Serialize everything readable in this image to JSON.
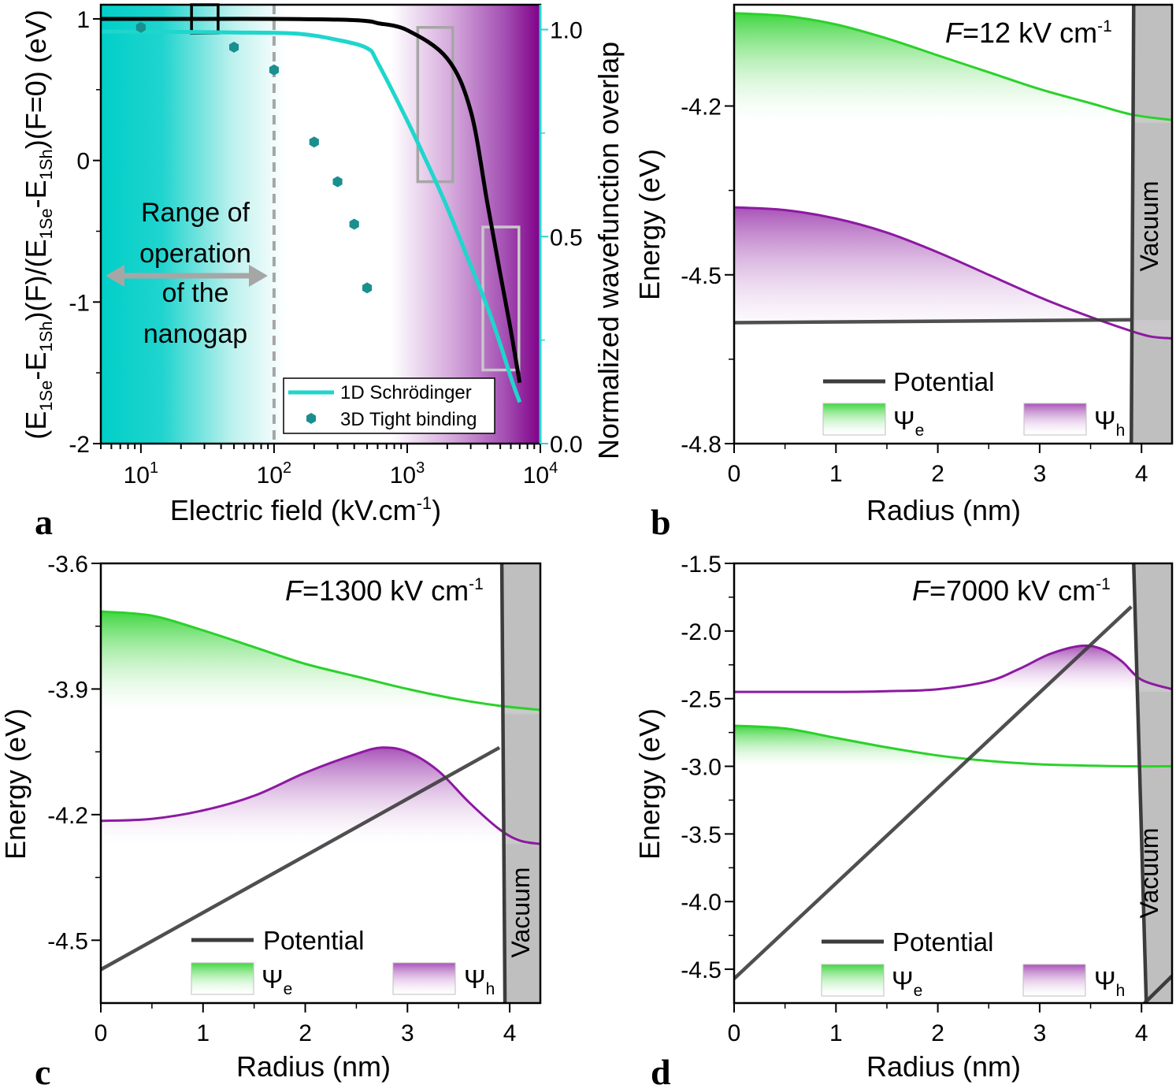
{
  "figure": {
    "panel_letters": [
      "a",
      "b",
      "c",
      "d"
    ]
  },
  "colors": {
    "schrodinger": "#1ED6CC",
    "tight_binding": "#1A8F8F",
    "electron": "#2BD12B",
    "hole": "#8C1AA0",
    "potential": "#3C3C3C",
    "vacuum": "#BFBFBF",
    "cyan_bg": "#00CFC8",
    "purple_bg": "#800088",
    "axis_cyan": "#26D7D0"
  },
  "chart_data": [
    {
      "id": "a",
      "type": "line",
      "xscale": "log",
      "xlim": [
        5,
        10000
      ],
      "ylim_left": [
        -2,
        1.1
      ],
      "ylim_right": [
        0,
        1.06
      ],
      "xlabel": "Electric field (kV.cm",
      "xlabel_sup": "-1",
      "xlabel_end": ")",
      "ylabel_left": "(E1Se-E1Sh)(F)/(E1Se-E1Sh)(F=0) (eV)",
      "ylabel_right": "Normalized wavefunction overlap",
      "xticks": [
        {
          "base": "10",
          "exp": "1",
          "value": 10
        },
        {
          "base": "10",
          "exp": "2",
          "value": 100
        },
        {
          "base": "10",
          "exp": "3",
          "value": 1000
        },
        {
          "base": "10",
          "exp": "4",
          "value": 10000
        }
      ],
      "yticks_left": [
        {
          "label": "1",
          "value": 1
        },
        {
          "label": "0",
          "value": 0
        },
        {
          "label": "-1",
          "value": -1
        },
        {
          "label": "-2",
          "value": -2
        }
      ],
      "yticks_right": [
        {
          "label": "1.0",
          "value": 1.0
        },
        {
          "label": "0.5",
          "value": 0.5
        },
        {
          "label": "0.0",
          "value": 0.0
        }
      ],
      "series": [
        {
          "name": "energy_ratio",
          "axis": "left",
          "x": [
            5,
            10,
            30,
            100,
            300,
            500,
            600,
            1000,
            2000,
            3000,
            4000,
            5000,
            6000,
            7000
          ],
          "y": [
            1.0,
            1.0,
            1.0,
            1.0,
            0.995,
            0.985,
            0.97,
            0.92,
            0.72,
            0.35,
            -0.3,
            -0.8,
            -1.2,
            -1.57
          ]
        },
        {
          "name": "1D Schrödinger",
          "axis": "right",
          "x": [
            5,
            10,
            50,
            150,
            300,
            500,
            600,
            1000,
            1500,
            2000,
            3000,
            4000,
            5000,
            6000,
            7000
          ],
          "y": [
            0.995,
            0.995,
            0.993,
            0.99,
            0.975,
            0.955,
            0.92,
            0.78,
            0.66,
            0.57,
            0.43,
            0.33,
            0.24,
            0.16,
            0.1
          ]
        },
        {
          "name": "3D Tight binding",
          "axis": "left",
          "marker": "hexagon",
          "x": [
            10,
            50,
            100,
            200,
            300,
            400,
            500
          ],
          "y": [
            0.94,
            0.8,
            0.64,
            0.13,
            -0.15,
            -0.45,
            -0.9
          ]
        }
      ],
      "legend": [
        "1D Schrödinger",
        "3D Tight binding"
      ],
      "annotation_lines": [
        "Range of",
        "operation",
        "of the",
        "nanogap"
      ],
      "dashed_line_x": 100,
      "boxes": [
        {
          "color": "#000000",
          "x0": 24,
          "x1": 38,
          "y0": 0.9,
          "y1": 1.1
        },
        {
          "color": "#A6A6A6",
          "x0": 1200,
          "x1": 2200,
          "y0": -0.15,
          "y1": 0.94
        },
        {
          "color": "#C8C8C8",
          "x0": 3700,
          "x1": 6900,
          "y0": -1.48,
          "y1": -0.47
        }
      ]
    },
    {
      "id": "b",
      "type": "line",
      "field_label_italic": "F",
      "field_label": "=12 kV cm",
      "field_sup": "-1",
      "xlim": [
        0,
        4.3
      ],
      "ylim": [
        -4.8,
        -4.02
      ],
      "xlabel": "Radius (nm)",
      "ylabel": "Energy (eV)",
      "xticks": [
        0,
        1,
        2,
        3,
        4
      ],
      "yticks": [
        {
          "label": "-4.2",
          "value": -4.2
        },
        {
          "label": "-4.5",
          "value": -4.5
        },
        {
          "label": "-4.8",
          "value": -4.8
        }
      ],
      "wall_x": 3.9,
      "vacuum_label": "Vacuum",
      "electron": {
        "baseline": -4.23,
        "x": [
          0,
          0.5,
          1,
          1.5,
          2,
          2.5,
          3,
          3.5,
          3.9,
          4.3
        ],
        "y": [
          -4.035,
          -4.04,
          -4.055,
          -4.08,
          -4.11,
          -4.14,
          -4.17,
          -4.195,
          -4.215,
          -4.225
        ]
      },
      "hole": {
        "baseline": -4.58,
        "x": [
          0,
          0.5,
          1,
          1.5,
          2,
          2.5,
          3,
          3.5,
          3.9,
          4.1,
          4.3
        ],
        "y": [
          -4.38,
          -4.385,
          -4.4,
          -4.425,
          -4.46,
          -4.5,
          -4.54,
          -4.575,
          -4.6,
          -4.61,
          -4.613
        ]
      },
      "potential": {
        "x": [
          0,
          3.9
        ],
        "y": [
          -4.585,
          -4.58
        ]
      },
      "legend": {
        "potential": "Potential",
        "psi_e": "Ψ",
        "psi_e_sub": "e",
        "psi_h": "Ψ",
        "psi_h_sub": "h"
      }
    },
    {
      "id": "c",
      "type": "line",
      "field_label_italic": "F",
      "field_label": "=1300 kV cm",
      "field_sup": "-1",
      "xlim": [
        0,
        4.3
      ],
      "ylim": [
        -4.65,
        -3.6
      ],
      "xlabel": "Radius (nm)",
      "ylabel": "Energy (eV)",
      "xticks": [
        0,
        1,
        2,
        3,
        4
      ],
      "yticks": [
        {
          "label": "-3.6",
          "value": -3.6
        },
        {
          "label": "-3.9",
          "value": -3.9
        },
        {
          "label": "-4.2",
          "value": -4.2
        },
        {
          "label": "-4.5",
          "value": -4.5
        }
      ],
      "wall_x": 3.9,
      "vacuum_label": "Vacuum",
      "electron": {
        "baseline": -3.96,
        "x": [
          0,
          0.5,
          1,
          1.5,
          2,
          2.5,
          3,
          3.5,
          3.9,
          4.3
        ],
        "y": [
          -3.715,
          -3.725,
          -3.76,
          -3.8,
          -3.84,
          -3.87,
          -3.9,
          -3.925,
          -3.94,
          -3.95
        ]
      },
      "hole": {
        "baseline": -4.27,
        "x": [
          0,
          0.5,
          1,
          1.5,
          2,
          2.5,
          2.75,
          3,
          3.3,
          3.6,
          3.9,
          4.1,
          4.3
        ],
        "y": [
          -4.215,
          -4.21,
          -4.19,
          -4.155,
          -4.1,
          -4.055,
          -4.04,
          -4.05,
          -4.095,
          -4.17,
          -4.235,
          -4.262,
          -4.27
        ]
      },
      "potential": {
        "x": [
          0,
          3.9
        ],
        "y": [
          -4.57,
          -4.04
        ]
      },
      "legend": {
        "potential": "Potential",
        "psi_e": "Ψ",
        "psi_e_sub": "e",
        "psi_h": "Ψ",
        "psi_h_sub": "h"
      }
    },
    {
      "id": "d",
      "type": "line",
      "field_label_italic": "F",
      "field_label": "=7000 kV cm",
      "field_sup": "-1",
      "xlim": [
        0,
        4.3
      ],
      "ylim": [
        -4.75,
        -1.5
      ],
      "xlabel": "Radius (nm)",
      "ylabel": "Energy (eV)",
      "xticks": [
        0,
        1,
        2,
        3,
        4
      ],
      "yticks": [
        {
          "label": "-1.5",
          "value": -1.5
        },
        {
          "label": "-2.0",
          "value": -2.0
        },
        {
          "label": "-2.5",
          "value": -2.5
        },
        {
          "label": "-3.0",
          "value": -3.0
        },
        {
          "label": "-3.5",
          "value": -3.5
        },
        {
          "label": "-4.0",
          "value": -4.0
        },
        {
          "label": "-4.5",
          "value": -4.5
        }
      ],
      "wall_x": 3.9,
      "vacuum_label": "Vacuum",
      "electron": {
        "baseline": -3.01,
        "x": [
          0,
          0.5,
          1,
          1.5,
          2,
          2.5,
          3,
          3.5,
          3.9,
          4.3
        ],
        "y": [
          -2.7,
          -2.72,
          -2.79,
          -2.86,
          -2.92,
          -2.96,
          -2.985,
          -2.995,
          -3.0,
          -3.0
        ]
      },
      "hole": {
        "baseline": -2.45,
        "x": [
          0,
          0.5,
          1,
          1.5,
          2,
          2.5,
          2.8,
          3.1,
          3.4,
          3.6,
          3.8,
          4.0,
          4.3
        ],
        "y": [
          -2.45,
          -2.45,
          -2.45,
          -2.445,
          -2.43,
          -2.37,
          -2.28,
          -2.17,
          -2.11,
          -2.13,
          -2.22,
          -2.36,
          -2.43
        ]
      },
      "potential": {
        "x": [
          0,
          3.9
        ],
        "y": [
          -4.57,
          -1.82
        ]
      },
      "legend": {
        "potential": "Potential",
        "psi_e": "Ψ",
        "psi_e_sub": "e",
        "psi_h": "Ψ",
        "psi_h_sub": "h"
      }
    }
  ]
}
